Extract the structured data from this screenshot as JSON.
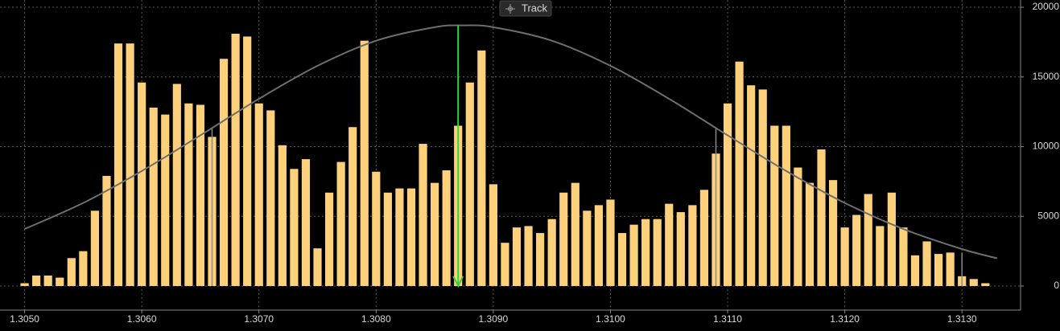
{
  "toolbar": {
    "button": "Track"
  },
  "chart_data": {
    "type": "histogram",
    "x": [
      1.305,
      1.3051,
      1.3052,
      1.3053,
      1.3054,
      1.3055,
      1.3056,
      1.3057,
      1.3058,
      1.3059,
      1.306,
      1.3061,
      1.3062,
      1.3063,
      1.3064,
      1.3065,
      1.3066,
      1.3067,
      1.3068,
      1.3069,
      1.307,
      1.3071,
      1.3072,
      1.3073,
      1.3074,
      1.3075,
      1.3076,
      1.3077,
      1.3078,
      1.3079,
      1.308,
      1.3081,
      1.3082,
      1.3083,
      1.3084,
      1.3085,
      1.3086,
      1.3087,
      1.3088,
      1.3089,
      1.309,
      1.3091,
      1.3092,
      1.3093,
      1.3094,
      1.3095,
      1.3096,
      1.3097,
      1.3098,
      1.3099,
      1.31,
      1.3101,
      1.3102,
      1.3103,
      1.3104,
      1.3105,
      1.3106,
      1.3107,
      1.3108,
      1.3109,
      1.311,
      1.3111,
      1.3112,
      1.3113,
      1.3114,
      1.3115,
      1.3116,
      1.3117,
      1.3118,
      1.3119,
      1.312,
      1.3121,
      1.3122,
      1.3123,
      1.3124,
      1.3125,
      1.3126,
      1.3127,
      1.3128,
      1.3129,
      1.313,
      1.3131,
      1.3132
    ],
    "values": [
      200,
      750,
      750,
      600,
      2000,
      2500,
      5400,
      7900,
      17400,
      17400,
      14600,
      12800,
      12300,
      14500,
      13100,
      13000,
      10700,
      16300,
      18100,
      17900,
      13100,
      12600,
      10100,
      8400,
      9100,
      2700,
      6700,
      8900,
      11400,
      17600,
      8200,
      6700,
      7000,
      7000,
      10200,
      7400,
      8300,
      11500,
      14600,
      16900,
      7300,
      3100,
      4200,
      4300,
      3800,
      4800,
      6700,
      7400,
      5400,
      5800,
      6200,
      3800,
      4400,
      4800,
      4800,
      5900,
      5300,
      5800,
      6900,
      9500,
      13100,
      16100,
      14400,
      14100,
      11500,
      11500,
      8500,
      7400,
      9800,
      7600,
      4200,
      5100,
      6600,
      4300,
      6700,
      4200,
      2200,
      3200,
      2300,
      2400,
      700,
      500,
      200
    ],
    "color": "#fdd07c",
    "curve": {
      "color": "#6e6e6e",
      "x": [
        1.305,
        1.3055,
        1.306,
        1.3065,
        1.307,
        1.3075,
        1.308,
        1.3085,
        1.30875,
        1.309,
        1.3095,
        1.31,
        1.3105,
        1.311,
        1.3115,
        1.312,
        1.3125,
        1.313,
        1.3133
      ],
      "values": [
        4090,
        5960,
        8250,
        10810,
        13430,
        15800,
        17600,
        18570,
        18700,
        18570,
        17600,
        15800,
        13430,
        10810,
        8250,
        5960,
        4090,
        2650,
        1990
      ]
    },
    "vlines": {
      "color": "#8a8a8a",
      "x": [
        1.3066,
        1.3109,
        1.313
      ],
      "values": [
        11300,
        11300,
        2400
      ]
    },
    "arrow": {
      "color": "#3ecf3e",
      "x": 1.3087,
      "value": 18700
    },
    "xlim": [
      1.30479,
      1.3135
    ],
    "ylim": [
      -1730,
      20520
    ],
    "xticks": [
      {
        "value": 1.305,
        "label": "1.3050"
      },
      {
        "value": 1.306,
        "label": "1.3060"
      },
      {
        "value": 1.307,
        "label": "1.3070"
      },
      {
        "value": 1.308,
        "label": "1.3080"
      },
      {
        "value": 1.309,
        "label": "1.3090"
      },
      {
        "value": 1.31,
        "label": "1.3100"
      },
      {
        "value": 1.311,
        "label": "1.3110"
      },
      {
        "value": 1.312,
        "label": "1.3120"
      },
      {
        "value": 1.313,
        "label": "1.3130"
      }
    ],
    "yticks": [
      0,
      5000,
      10000,
      15000,
      20000
    ],
    "grid": true
  }
}
